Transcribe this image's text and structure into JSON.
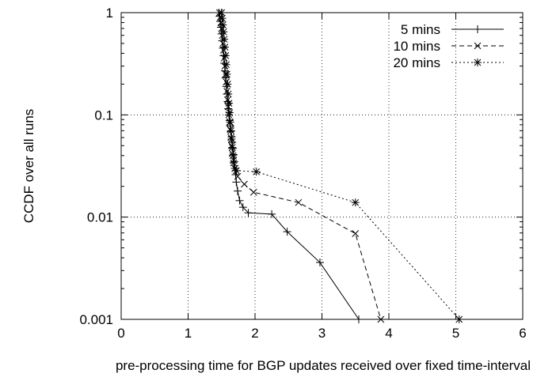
{
  "chart_data": {
    "type": "line",
    "xlabel": "pre-processing time for BGP updates received over fixed time-interval",
    "ylabel": "CCDF over all runs",
    "xlim": [
      0,
      6
    ],
    "ylim": [
      0.001,
      1
    ],
    "yscale": "log",
    "grid": true,
    "legend_position": "top-right",
    "x_ticks": [
      0,
      1,
      2,
      3,
      4,
      5,
      6
    ],
    "x_tick_labels": [
      "0",
      "1",
      "2",
      "3",
      "4",
      "5",
      "6"
    ],
    "y_ticks": [
      0.001,
      0.01,
      0.1,
      1
    ],
    "y_tick_labels": [
      "0.001",
      "0.01",
      "0.1",
      "1"
    ],
    "series": [
      {
        "name": "5 mins",
        "marker": "plus",
        "dash": "solid",
        "x": [
          1.46,
          1.47,
          1.48,
          1.49,
          1.5,
          1.51,
          1.52,
          1.53,
          1.54,
          1.55,
          1.56,
          1.57,
          1.58,
          1.59,
          1.6,
          1.61,
          1.62,
          1.63,
          1.64,
          1.65,
          1.66,
          1.67,
          1.68,
          1.69,
          1.7,
          1.71,
          1.72,
          1.74,
          1.77,
          1.82,
          1.9,
          2.25,
          2.48,
          2.97,
          3.55
        ],
        "y": [
          1.0,
          0.92,
          0.82,
          0.72,
          0.62,
          0.53,
          0.45,
          0.38,
          0.32,
          0.27,
          0.23,
          0.19,
          0.16,
          0.135,
          0.115,
          0.1,
          0.088,
          0.078,
          0.069,
          0.061,
          0.054,
          0.047,
          0.041,
          0.035,
          0.03,
          0.026,
          0.022,
          0.018,
          0.0145,
          0.0125,
          0.011,
          0.0107,
          0.0072,
          0.0036,
          0.001
        ]
      },
      {
        "name": "10 mins",
        "marker": "cross",
        "dash": "dashed",
        "x": [
          1.47,
          1.48,
          1.49,
          1.5,
          1.51,
          1.52,
          1.53,
          1.54,
          1.55,
          1.56,
          1.57,
          1.58,
          1.59,
          1.6,
          1.61,
          1.62,
          1.63,
          1.64,
          1.65,
          1.66,
          1.68,
          1.7,
          1.74,
          1.84,
          1.98,
          2.65,
          3.5,
          3.88
        ],
        "y": [
          1.0,
          0.9,
          0.8,
          0.7,
          0.6,
          0.5,
          0.43,
          0.36,
          0.3,
          0.25,
          0.21,
          0.17,
          0.14,
          0.12,
          0.1,
          0.085,
          0.072,
          0.06,
          0.05,
          0.042,
          0.036,
          0.03,
          0.025,
          0.021,
          0.0175,
          0.0139,
          0.0069,
          0.001
        ]
      },
      {
        "name": "20 mins",
        "marker": "star",
        "dash": "dotted",
        "x": [
          1.5,
          1.51,
          1.52,
          1.53,
          1.54,
          1.55,
          1.56,
          1.57,
          1.58,
          1.59,
          1.6,
          1.61,
          1.62,
          1.63,
          1.64,
          1.65,
          1.66,
          1.67,
          1.68,
          1.7,
          1.72,
          2.02,
          3.5,
          5.05
        ],
        "y": [
          1.0,
          0.88,
          0.76,
          0.65,
          0.55,
          0.46,
          0.38,
          0.31,
          0.25,
          0.2,
          0.16,
          0.13,
          0.105,
          0.085,
          0.07,
          0.058,
          0.048,
          0.04,
          0.034,
          0.03,
          0.0285,
          0.0278,
          0.0139,
          0.001
        ]
      }
    ]
  }
}
